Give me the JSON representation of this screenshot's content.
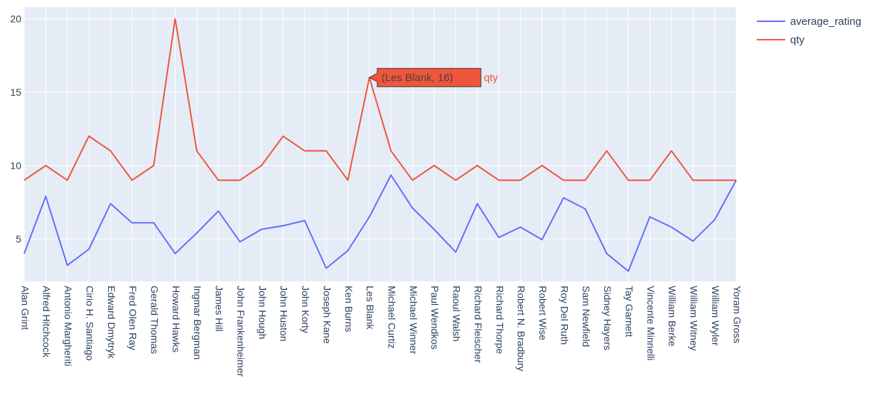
{
  "chart_data": {
    "type": "line",
    "categories": [
      "Alan Grint",
      "Alfred Hitchcock",
      "Antonio Margheriti",
      "Cirio H. Santiago",
      "Edward Dmytryk",
      "Fred Olen Ray",
      "Gerald Thomas",
      "Howard Hawks",
      "Ingmar Bergman",
      "James Hill",
      "John Frankenheimer",
      "John Hough",
      "John Huston",
      "John Korty",
      "Joseph Kane",
      "Ken Burns",
      "Les Blank",
      "Michael Curtiz",
      "Michael Winner",
      "Paul Wendkos",
      "Raoul Walsh",
      "Richard Fleischer",
      "Richard Thorpe",
      "Robert N. Bradbury",
      "Robert Wise",
      "Roy Del Ruth",
      "Sam Newfield",
      "Sidney Hayers",
      "Tay Garnett",
      "Vincente Minnelli",
      "William Berke",
      "William Witney",
      "William Wyler",
      "Yoram Gross"
    ],
    "series": [
      {
        "name": "average_rating",
        "color": "#636efa",
        "values": [
          4.0,
          7.9,
          3.2,
          4.3,
          7.4,
          6.1,
          6.1,
          4.0,
          5.4,
          6.9,
          4.8,
          5.65,
          5.9,
          6.25,
          3.0,
          4.2,
          6.5,
          9.35,
          7.1,
          5.65,
          4.1,
          7.4,
          5.1,
          5.8,
          4.95,
          7.8,
          7.05,
          4.0,
          2.8,
          6.5,
          5.8,
          4.85,
          6.3,
          9.0
        ]
      },
      {
        "name": "qty",
        "color": "#ef553b",
        "values": [
          9,
          10,
          9,
          12,
          11,
          9,
          10,
          20,
          11,
          9,
          9,
          10,
          12,
          11,
          11,
          9,
          16,
          11,
          9,
          10,
          9,
          10,
          9,
          9,
          10,
          9,
          9,
          11,
          9,
          9,
          11,
          9,
          9,
          9
        ]
      }
    ],
    "ylim": [
      2.1,
      20.8
    ],
    "yticks": [
      5,
      10,
      15,
      20
    ],
    "grid": true,
    "legend_placement": "top-right",
    "hover": {
      "category": "Les Blank",
      "value": 16,
      "series": "qty",
      "text": "(Les Blank, 16)"
    },
    "plot_background": "#e5ecf6"
  }
}
